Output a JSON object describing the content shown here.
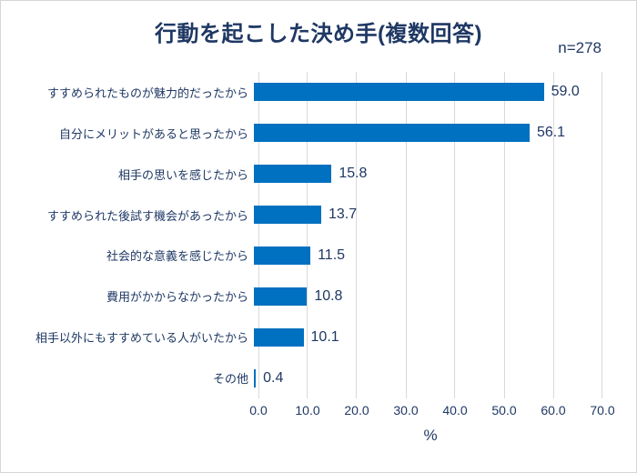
{
  "title": "行動を起こした決め手(複数回答)",
  "sample_size_label": "n=278",
  "chart_data": {
    "type": "bar",
    "orientation": "horizontal",
    "title": "行動を起こした決め手(複数回答)",
    "sample_size": "n=278",
    "categories": [
      "すすめられたものが魅力的だったから",
      "自分にメリットがあると思ったから",
      "相手の思いを感じたから",
      "すすめられた後試す機会があったから",
      "社会的な意義を感じたから",
      "費用がかからなかったから",
      "相手以外にもすすめている人がいたから",
      "その他"
    ],
    "values": [
      59.0,
      56.1,
      15.8,
      13.7,
      11.5,
      10.8,
      10.1,
      0.4
    ],
    "value_labels": [
      "59.0",
      "56.1",
      "15.8",
      "13.7",
      "11.5",
      "10.8",
      "10.1",
      "0.4"
    ],
    "xlabel": "%",
    "xlim": [
      0,
      70
    ],
    "x_ticks": [
      "0.0",
      "10.0",
      "20.0",
      "30.0",
      "40.0",
      "50.0",
      "60.0",
      "70.0"
    ],
    "grid": true,
    "legend": "none",
    "colors": {
      "bar": "#0070c0",
      "text": "#1f3864",
      "gridline": "#d9d9d9",
      "frame_border": "#d6d6d6",
      "background": "#ffffff"
    }
  }
}
